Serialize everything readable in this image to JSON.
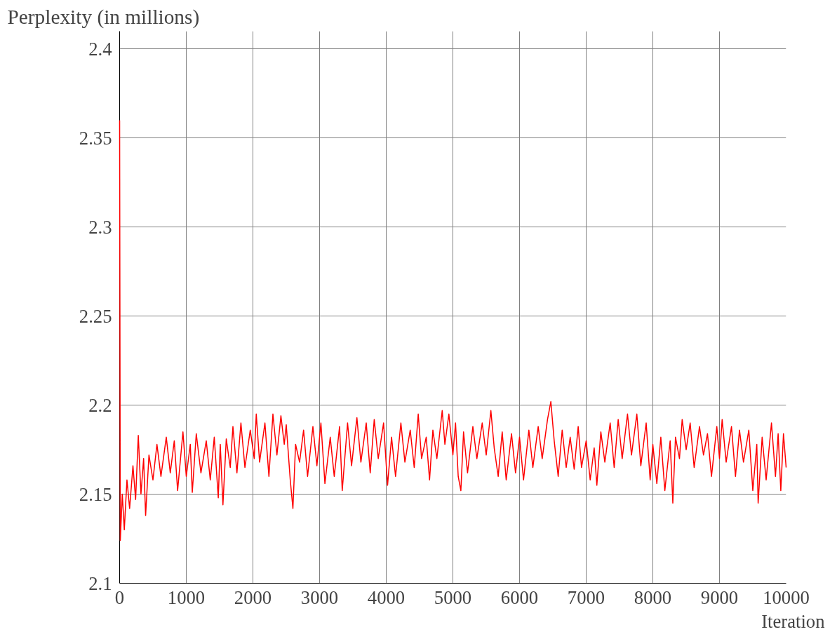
{
  "chart_data": {
    "type": "line",
    "xlabel": "Iteration",
    "ylabel": "Perplexity (in millions)",
    "xlim": [
      0,
      10000
    ],
    "ylim": [
      2.1,
      2.41
    ],
    "xticks": [
      0,
      1000,
      2000,
      3000,
      4000,
      5000,
      6000,
      7000,
      8000,
      9000,
      10000
    ],
    "yticks": [
      2.1,
      2.15,
      2.2,
      2.25,
      2.3,
      2.35,
      2.4
    ],
    "grid": true,
    "marker": "none",
    "line_style": "solid",
    "series": [
      {
        "color": "#ff0000",
        "x": [
          0,
          10,
          40,
          70,
          110,
          150,
          200,
          240,
          280,
          320,
          360,
          390,
          440,
          500,
          560,
          620,
          700,
          760,
          820,
          870,
          950,
          1000,
          1060,
          1090,
          1150,
          1220,
          1300,
          1360,
          1420,
          1480,
          1510,
          1550,
          1600,
          1660,
          1700,
          1760,
          1820,
          1880,
          1960,
          2020,
          2050,
          2100,
          2180,
          2240,
          2300,
          2360,
          2420,
          2470,
          2500,
          2560,
          2600,
          2640,
          2700,
          2760,
          2820,
          2900,
          2960,
          3020,
          3080,
          3160,
          3220,
          3300,
          3340,
          3420,
          3480,
          3560,
          3620,
          3700,
          3760,
          3820,
          3880,
          3960,
          4020,
          4080,
          4140,
          4220,
          4280,
          4360,
          4420,
          4480,
          4530,
          4600,
          4650,
          4700,
          4760,
          4840,
          4880,
          4940,
          5000,
          5040,
          5080,
          5120,
          5160,
          5220,
          5300,
          5360,
          5440,
          5500,
          5570,
          5620,
          5680,
          5740,
          5800,
          5880,
          5940,
          6000,
          6060,
          6140,
          6200,
          6280,
          6340,
          6420,
          6470,
          6520,
          6580,
          6640,
          6700,
          6760,
          6820,
          6880,
          6930,
          7000,
          7060,
          7120,
          7160,
          7220,
          7280,
          7360,
          7420,
          7480,
          7540,
          7620,
          7680,
          7760,
          7820,
          7900,
          7960,
          8000,
          8060,
          8120,
          8180,
          8260,
          8300,
          8340,
          8400,
          8440,
          8500,
          8560,
          8620,
          8700,
          8760,
          8820,
          8880,
          8960,
          9000,
          9040,
          9100,
          9180,
          9240,
          9300,
          9360,
          9440,
          9500,
          9560,
          9580,
          9640,
          9700,
          9780,
          9840,
          9880,
          9920,
          9960,
          10000
        ],
        "values": [
          2.36,
          2.124,
          2.15,
          2.13,
          2.158,
          2.142,
          2.166,
          2.147,
          2.183,
          2.15,
          2.17,
          2.138,
          2.172,
          2.158,
          2.178,
          2.16,
          2.182,
          2.162,
          2.18,
          2.152,
          2.185,
          2.16,
          2.178,
          2.151,
          2.184,
          2.162,
          2.18,
          2.158,
          2.182,
          2.148,
          2.178,
          2.144,
          2.181,
          2.165,
          2.188,
          2.162,
          2.19,
          2.165,
          2.186,
          2.17,
          2.195,
          2.168,
          2.19,
          2.16,
          2.195,
          2.172,
          2.194,
          2.178,
          2.189,
          2.158,
          2.142,
          2.178,
          2.168,
          2.186,
          2.16,
          2.188,
          2.166,
          2.19,
          2.156,
          2.182,
          2.16,
          2.188,
          2.152,
          2.19,
          2.166,
          2.193,
          2.168,
          2.19,
          2.162,
          2.192,
          2.17,
          2.19,
          2.155,
          2.182,
          2.16,
          2.19,
          2.168,
          2.186,
          2.165,
          2.195,
          2.17,
          2.182,
          2.158,
          2.186,
          2.17,
          2.197,
          2.178,
          2.195,
          2.172,
          2.19,
          2.16,
          2.152,
          2.185,
          2.162,
          2.188,
          2.17,
          2.19,
          2.172,
          2.197,
          2.176,
          2.16,
          2.185,
          2.158,
          2.184,
          2.162,
          2.182,
          2.158,
          2.186,
          2.165,
          2.188,
          2.17,
          2.192,
          2.202,
          2.18,
          2.16,
          2.186,
          2.165,
          2.182,
          2.164,
          2.188,
          2.165,
          2.18,
          2.158,
          2.176,
          2.155,
          2.185,
          2.168,
          2.19,
          2.165,
          2.192,
          2.17,
          2.195,
          2.172,
          2.195,
          2.166,
          2.19,
          2.158,
          2.178,
          2.156,
          2.182,
          2.152,
          2.18,
          2.145,
          2.182,
          2.17,
          2.192,
          2.175,
          2.19,
          2.165,
          2.188,
          2.172,
          2.184,
          2.16,
          2.188,
          2.17,
          2.192,
          2.168,
          2.188,
          2.16,
          2.186,
          2.168,
          2.186,
          2.152,
          2.178,
          2.145,
          2.182,
          2.158,
          2.19,
          2.16,
          2.184,
          2.152,
          2.184,
          2.165
        ]
      }
    ]
  }
}
